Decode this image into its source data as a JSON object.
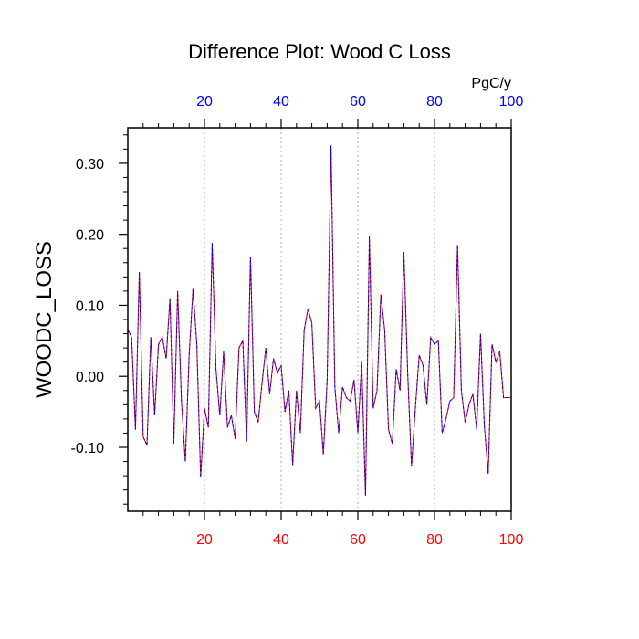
{
  "chart_data": {
    "type": "line",
    "title": "Difference Plot: Wood C Loss",
    "ylabel": "WOODC_LOSS",
    "top_axis_unit": "PgC/y",
    "xlim": [
      0,
      100
    ],
    "ylim": [
      -0.19,
      0.35
    ],
    "x_ticks": [
      20,
      40,
      60,
      80,
      100
    ],
    "x_tick_labels": [
      "20",
      "40",
      "60",
      "80",
      "100"
    ],
    "y_ticks": [
      0.3,
      0.2,
      0.1,
      0.0,
      -0.1
    ],
    "y_tick_labels": [
      "0.30",
      "0.20",
      "0.10",
      "0.00",
      "-0.10"
    ],
    "grid": "vertical dotted",
    "colors": {
      "bottom_ticks": "#ff0000",
      "top_ticks": "#0000ff",
      "series_a": "#ff0000",
      "series_b": "#0000ff",
      "axis": "#000000",
      "grid": "#999999"
    },
    "series": [
      {
        "x": [
          0,
          1,
          2,
          3,
          4,
          5,
          6,
          7,
          8,
          9,
          10,
          11,
          12,
          13,
          14,
          15,
          16,
          17,
          18,
          19,
          20,
          21,
          22,
          23,
          24,
          25,
          26,
          27,
          28,
          29,
          30,
          31,
          32,
          33,
          34,
          35,
          36,
          37,
          38,
          39,
          40,
          41,
          42,
          43,
          44,
          45,
          46,
          47,
          48,
          49,
          50,
          51,
          52,
          53,
          54,
          55,
          56,
          57,
          58,
          59,
          60,
          61,
          62,
          63,
          64,
          65,
          66,
          67,
          68,
          69,
          70,
          71,
          72,
          73,
          74,
          75,
          76,
          77,
          78,
          79,
          80,
          81,
          82,
          83,
          84,
          85,
          86,
          87,
          88,
          89,
          90,
          91,
          92,
          93,
          94,
          95,
          96,
          97,
          98,
          99,
          100
        ],
        "values": [
          0.066,
          0.055,
          -0.075,
          0.147,
          -0.085,
          -0.097,
          0.055,
          -0.055,
          0.045,
          0.055,
          0.025,
          0.11,
          -0.095,
          0.12,
          -0.035,
          -0.12,
          0.03,
          0.123,
          0.045,
          -0.142,
          -0.045,
          -0.072,
          0.188,
          0.01,
          -0.055,
          0.035,
          -0.072,
          -0.055,
          -0.088,
          0.04,
          0.05,
          -0.092,
          0.168,
          -0.05,
          -0.065,
          -0.01,
          0.04,
          -0.025,
          0.025,
          0.005,
          0.015,
          -0.05,
          -0.02,
          -0.125,
          -0.02,
          -0.08,
          0.065,
          0.095,
          0.075,
          -0.045,
          -0.035,
          -0.11,
          -0.005,
          0.325,
          -0.015,
          -0.08,
          -0.015,
          -0.03,
          -0.035,
          -0.005,
          -0.08,
          0.02,
          -0.168,
          0.197,
          -0.045,
          -0.02,
          0.115,
          0.065,
          -0.075,
          -0.095,
          0.01,
          -0.02,
          0.175,
          0.005,
          -0.127,
          -0.045,
          0.03,
          0.015,
          -0.04,
          0.055,
          0.045,
          0.05,
          -0.08,
          -0.06,
          -0.035,
          -0.03,
          0.185,
          -0.02,
          -0.065,
          -0.04,
          -0.025,
          -0.075,
          0.06,
          -0.07,
          -0.137,
          0.045,
          0.02,
          0.035,
          -0.03,
          -0.03,
          -0.03
        ]
      }
    ]
  }
}
